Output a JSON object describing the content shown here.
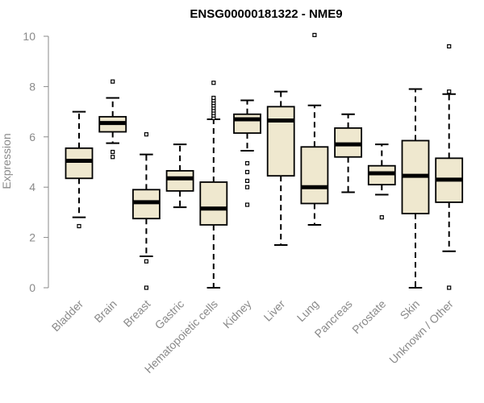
{
  "chart_data": {
    "type": "boxplot",
    "title": "ENSG00000181322 - NME9",
    "xlabel": "",
    "ylabel": "Expression",
    "ylim": [
      0,
      10
    ],
    "yticks": [
      0,
      2,
      4,
      6,
      8,
      10
    ],
    "box_fill": "#efe8cf",
    "categories": [
      "Bladder",
      "Brain",
      "Breast",
      "Gastric",
      "Hematopoietic cells",
      "Kidney",
      "Liver",
      "Lung",
      "Pancreas",
      "Prostate",
      "Skin",
      "Unknown / Other"
    ],
    "boxes": [
      {
        "category": "Bladder",
        "whisker_low": 2.8,
        "q1": 4.35,
        "median": 5.05,
        "q3": 5.55,
        "whisker_high": 7.0,
        "outliers": [
          2.45
        ]
      },
      {
        "category": "Brain",
        "whisker_low": 5.75,
        "q1": 6.2,
        "median": 6.55,
        "q3": 6.8,
        "whisker_high": 7.55,
        "outliers": [
          5.2,
          5.4,
          8.2
        ]
      },
      {
        "category": "Breast",
        "whisker_low": 1.25,
        "q1": 2.75,
        "median": 3.4,
        "q3": 3.9,
        "whisker_high": 5.3,
        "outliers": [
          0.0,
          1.05,
          6.1
        ]
      },
      {
        "category": "Gastric",
        "whisker_low": 3.2,
        "q1": 3.85,
        "median": 4.35,
        "q3": 4.65,
        "whisker_high": 5.7,
        "outliers": []
      },
      {
        "category": "Hematopoietic cells",
        "whisker_low": 0.0,
        "q1": 2.5,
        "median": 3.15,
        "q3": 4.2,
        "whisker_high": 6.7,
        "outliers": [
          6.75,
          6.85,
          6.95,
          7.05,
          7.15,
          7.25,
          7.35,
          7.45,
          7.55,
          8.15
        ]
      },
      {
        "category": "Kidney",
        "whisker_low": 5.45,
        "q1": 6.15,
        "median": 6.7,
        "q3": 6.9,
        "whisker_high": 7.45,
        "outliers": [
          3.3,
          4.0,
          4.25,
          4.6,
          4.95
        ]
      },
      {
        "category": "Liver",
        "whisker_low": 1.7,
        "q1": 4.45,
        "median": 6.65,
        "q3": 7.2,
        "whisker_high": 7.8,
        "outliers": []
      },
      {
        "category": "Lung",
        "whisker_low": 2.5,
        "q1": 3.35,
        "median": 4.0,
        "q3": 5.6,
        "whisker_high": 7.25,
        "outliers": [
          10.05
        ]
      },
      {
        "category": "Pancreas",
        "whisker_low": 3.8,
        "q1": 5.2,
        "median": 5.7,
        "q3": 6.35,
        "whisker_high": 6.9,
        "outliers": []
      },
      {
        "category": "Prostate",
        "whisker_low": 3.7,
        "q1": 4.1,
        "median": 4.55,
        "q3": 4.85,
        "whisker_high": 5.7,
        "outliers": [
          2.8
        ]
      },
      {
        "category": "Skin",
        "whisker_low": 0.0,
        "q1": 2.95,
        "median": 4.45,
        "q3": 5.85,
        "whisker_high": 7.9,
        "outliers": []
      },
      {
        "category": "Unknown / Other",
        "whisker_low": 1.45,
        "q1": 3.4,
        "median": 4.3,
        "q3": 5.15,
        "whisker_high": 7.7,
        "outliers": [
          0.0,
          7.8,
          9.6
        ]
      }
    ]
  }
}
